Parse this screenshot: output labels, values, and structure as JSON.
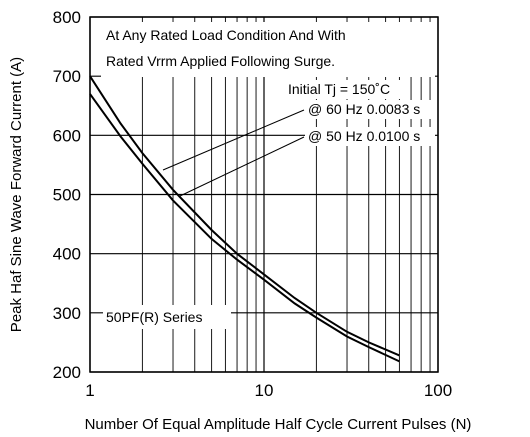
{
  "chart_data": {
    "type": "line",
    "ylabel": "Peak Haf Sine Wave Forward Current (A)",
    "xlabel": "Number Of Equal Amplitude Half Cycle Current Pulses (N)",
    "x_scale": "log",
    "xlim": [
      1,
      100
    ],
    "ylim": [
      200,
      800
    ],
    "x_ticks": [
      1,
      10,
      100
    ],
    "x_tick_labels": [
      "1",
      "10",
      "100"
    ],
    "y_ticks": [
      200,
      300,
      400,
      500,
      600,
      700,
      800
    ],
    "y_tick_labels": [
      "200",
      "300",
      "400",
      "500",
      "600",
      "700",
      "800"
    ],
    "grid": true,
    "note_lines": [
      "At Any Rated Load Condition And With",
      "Rated Vrrm Applied Following Surge."
    ],
    "annotations": {
      "initial": "Initial Tj = 150˚C",
      "hz60": "@ 60 Hz 0.0083 s",
      "hz50": "@ 50 Hz 0.0100 s",
      "series_label": "50PF(R) Series"
    },
    "series": [
      {
        "name": "@ 60 Hz 0.0083 s",
        "x": [
          1,
          1.5,
          2,
          3,
          5,
          7,
          10,
          15,
          20,
          30,
          40,
          60
        ],
        "y": [
          700,
          620,
          570,
          508,
          440,
          400,
          365,
          325,
          300,
          268,
          250,
          228
        ]
      },
      {
        "name": "@ 50 Hz 0.0100 s",
        "x": [
          1,
          1.5,
          2,
          3,
          5,
          7,
          10,
          15,
          20,
          30,
          40,
          60
        ],
        "y": [
          670,
          598,
          552,
          490,
          425,
          390,
          356,
          316,
          292,
          260,
          242,
          218
        ]
      }
    ]
  }
}
